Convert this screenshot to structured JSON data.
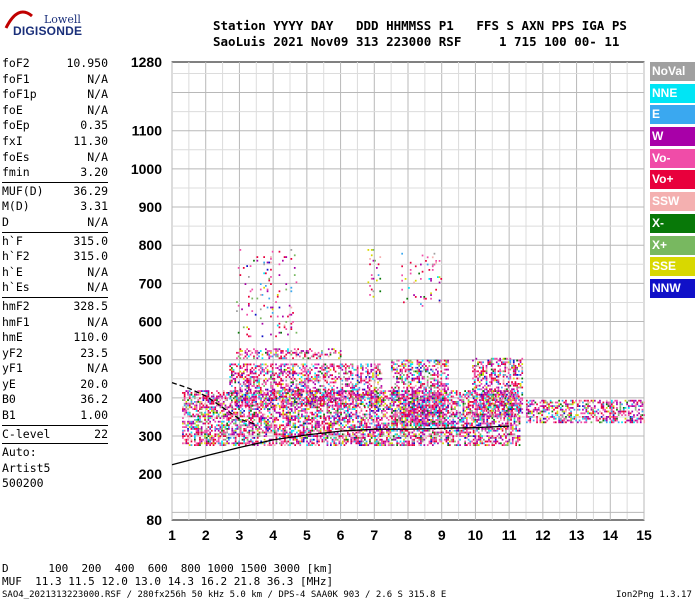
{
  "logo": {
    "line1": "Lowell",
    "line2": "DIGISONDE"
  },
  "header": {
    "line1": "Station YYYY DAY   DDD HHMMSS P1   FFS S AXN PPS IGA PS",
    "line2": "SaoLuis 2021 Nov09 313 223000 RSF     1 715 100 00- 11"
  },
  "params": [
    {
      "group": [
        {
          "name": "foF2",
          "value": "10.950"
        },
        {
          "name": "foF1",
          "value": "N/A"
        },
        {
          "name": "foF1p",
          "value": "N/A"
        },
        {
          "name": "foE",
          "value": "N/A"
        },
        {
          "name": "foEp",
          "value": "0.35"
        },
        {
          "name": "fxI",
          "value": "11.30"
        },
        {
          "name": "foEs",
          "value": "N/A"
        },
        {
          "name": "fmin",
          "value": "3.20"
        }
      ]
    },
    {
      "group": [
        {
          "name": "MUF(D)",
          "value": "36.29"
        },
        {
          "name": "M(D)",
          "value": "3.31"
        },
        {
          "name": "D",
          "value": "N/A"
        }
      ]
    },
    {
      "group": [
        {
          "name": "h`F",
          "value": "315.0"
        },
        {
          "name": "h`F2",
          "value": "315.0"
        },
        {
          "name": "h`E",
          "value": "N/A"
        },
        {
          "name": "h`Es",
          "value": "N/A"
        }
      ]
    },
    {
      "group": [
        {
          "name": "hmF2",
          "value": "328.5"
        },
        {
          "name": "hmF1",
          "value": "N/A"
        },
        {
          "name": "hmE",
          "value": "110.0"
        },
        {
          "name": "yF2",
          "value": "23.5"
        },
        {
          "name": "yF1",
          "value": "N/A"
        },
        {
          "name": "yE",
          "value": "20.0"
        },
        {
          "name": "B0",
          "value": "36.2"
        },
        {
          "name": "B1",
          "value": "1.00"
        }
      ]
    },
    {
      "group": [
        {
          "name": "C-level",
          "value": "22"
        }
      ]
    }
  ],
  "autoscaling": {
    "line1": "Auto:",
    "line2": "Artist5",
    "line3": "500200"
  },
  "legend": [
    {
      "label": "NoVal",
      "color": "#a0a0a0"
    },
    {
      "label": "NNE",
      "color": "#00e5f5"
    },
    {
      "label": "E",
      "color": "#3aa8f0"
    },
    {
      "label": "W",
      "color": "#a800a8"
    },
    {
      "label": "Vo-",
      "color": "#f04ca8"
    },
    {
      "label": "Vo+",
      "color": "#e8003c"
    },
    {
      "label": "SSW",
      "color": "#f4b0b0"
    },
    {
      "label": "X-",
      "color": "#087808"
    },
    {
      "label": "X+",
      "color": "#78b860"
    },
    {
      "label": "SSE",
      "color": "#d8d800"
    },
    {
      "label": "NNW",
      "color": "#1010c8"
    }
  ],
  "footer": {
    "d_line": "D      100  200  400  600  800 1000 1500 3000 [km]",
    "muf_line": "MUF  11.3 11.5 12.0 13.0 14.3 16.2 21.8 36.3 [MHz]",
    "bottom_left": "SAO4_2021313223000.RSF / 280fx256h 50 kHz 5.0 km / DPS-4 SAA0K 903 / 2.6 S 315.8 E",
    "bottom_right": "Ion2Png 1.3.17"
  },
  "chart_data": {
    "type": "scatter",
    "title": "",
    "xlabel": "",
    "ylabel": "",
    "xlim": [
      1,
      15
    ],
    "ylim": [
      80,
      1280
    ],
    "x_ticks": [
      1,
      2,
      3,
      4,
      5,
      6,
      7,
      8,
      9,
      10,
      11,
      12,
      13,
      14,
      15
    ],
    "y_ticks": [
      80,
      200,
      300,
      400,
      500,
      600,
      700,
      800,
      900,
      1000,
      1100,
      1280
    ],
    "grid": true,
    "echo_regions": [
      {
        "x0": 1.3,
        "x1": 11.3,
        "y0": 275,
        "y1": 420,
        "density": 0.55
      },
      {
        "x0": 2.7,
        "x1": 7.2,
        "y0": 380,
        "y1": 490,
        "density": 0.45
      },
      {
        "x0": 7.5,
        "x1": 9.2,
        "y0": 330,
        "y1": 500,
        "density": 0.5
      },
      {
        "x0": 9.9,
        "x1": 11.4,
        "y0": 350,
        "y1": 505,
        "density": 0.45
      },
      {
        "x0": 11.5,
        "x1": 15.0,
        "y0": 335,
        "y1": 395,
        "density": 0.45
      },
      {
        "x0": 2.9,
        "x1": 6.0,
        "y0": 505,
        "y1": 530,
        "density": 0.4
      },
      {
        "x0": 2.9,
        "x1": 4.7,
        "y0": 560,
        "y1": 790,
        "density": 0.05
      },
      {
        "x0": 6.8,
        "x1": 7.2,
        "y0": 640,
        "y1": 790,
        "density": 0.08
      },
      {
        "x0": 7.8,
        "x1": 9.0,
        "y0": 640,
        "y1": 780,
        "density": 0.08
      }
    ],
    "traces": [
      {
        "name": "solid",
        "x": [
          1.0,
          2.0,
          3.0,
          4.0,
          5.0,
          6.0,
          7.0,
          8.0,
          9.0,
          10.0,
          11.0
        ],
        "y": [
          225,
          248,
          270,
          290,
          303,
          313,
          318,
          318,
          320,
          322,
          326
        ]
      },
      {
        "name": "dashed",
        "x": [
          1.0,
          1.5,
          2.0,
          2.5,
          3.0,
          3.5
        ],
        "y": [
          440,
          425,
          405,
          375,
          345,
          330
        ]
      }
    ]
  }
}
